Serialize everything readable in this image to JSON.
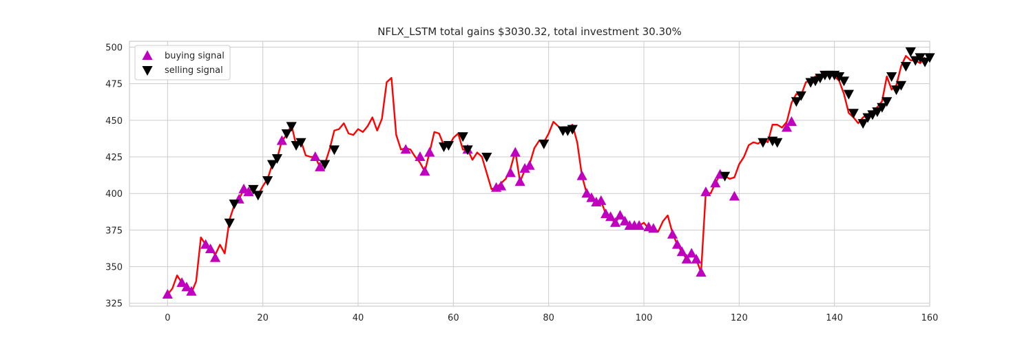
{
  "chart_data": {
    "type": "line",
    "title": "NFLX_LSTM total gains $3030.32, total investment 30.30%",
    "xlabel": "",
    "ylabel": "",
    "xlim": [
      -8,
      160
    ],
    "ylim": [
      323,
      504
    ],
    "x_ticks": [
      0,
      20,
      40,
      60,
      80,
      100,
      120,
      140,
      160
    ],
    "y_ticks": [
      325,
      350,
      375,
      400,
      425,
      450,
      475,
      500
    ],
    "grid": true,
    "legend_position": "top-left",
    "colors": {
      "line": "#ff0000",
      "buy": "#bf00bf",
      "sell": "#000000",
      "grid": "#cccccc",
      "axes_edge": "#cccccc"
    },
    "series": [
      {
        "kind": "line",
        "values": [
          331,
          335,
          344,
          339,
          336,
          332,
          340,
          370,
          365,
          363,
          358,
          365,
          359,
          382,
          392,
          396,
          403,
          402,
          403,
          399,
          405,
          410,
          420,
          424,
          436,
          440,
          447,
          433,
          436,
          426,
          425,
          425,
          418,
          420,
          430,
          443,
          444,
          448,
          441,
          440,
          444,
          442,
          446,
          452,
          443,
          451,
          476,
          479,
          440,
          430,
          431,
          430,
          425,
          421,
          415,
          428,
          442,
          441,
          433,
          432,
          438,
          441,
          430,
          430,
          423,
          428,
          425,
          414,
          403,
          404,
          407,
          410,
          417,
          429,
          408,
          416,
          420,
          431,
          436,
          435,
          441,
          449,
          446,
          443,
          444,
          447,
          435,
          412,
          400,
          396,
          394,
          395,
          386,
          383,
          380,
          385,
          381,
          378,
          378,
          378,
          380,
          376,
          376,
          374,
          381,
          385,
          373,
          365,
          360,
          355,
          360,
          355,
          346,
          401,
          400,
          407,
          413,
          412,
          410,
          411,
          420,
          425,
          433,
          435,
          434,
          437,
          435,
          447,
          447,
          445,
          449,
          462,
          468,
          467,
          476,
          477,
          480,
          481,
          481,
          481,
          480,
          477,
          468,
          455,
          452,
          448,
          452,
          454,
          456,
          459,
          463,
          480,
          471,
          474,
          487,
          494,
          491,
          491,
          489,
          493
        ]
      },
      {
        "name": "buying signal",
        "kind": "marker-up",
        "points": [
          [
            0,
            331
          ],
          [
            3,
            339
          ],
          [
            4,
            336
          ],
          [
            5,
            333
          ],
          [
            8,
            365
          ],
          [
            9,
            362
          ],
          [
            10,
            356
          ],
          [
            15,
            396
          ],
          [
            16,
            403
          ],
          [
            17,
            401
          ],
          [
            24,
            436
          ],
          [
            31,
            425
          ],
          [
            32,
            418
          ],
          [
            50,
            430
          ],
          [
            53,
            425
          ],
          [
            54,
            415
          ],
          [
            55,
            428
          ],
          [
            63,
            430
          ],
          [
            69,
            404
          ],
          [
            70,
            405
          ],
          [
            72,
            414
          ],
          [
            73,
            428
          ],
          [
            74,
            408
          ],
          [
            75,
            417
          ],
          [
            76,
            419
          ],
          [
            87,
            412
          ],
          [
            88,
            400
          ],
          [
            89,
            397
          ],
          [
            90,
            394
          ],
          [
            91,
            395
          ],
          [
            92,
            386
          ],
          [
            93,
            384
          ],
          [
            94,
            380
          ],
          [
            95,
            385
          ],
          [
            96,
            381
          ],
          [
            97,
            378
          ],
          [
            98,
            378
          ],
          [
            99,
            378
          ],
          [
            101,
            377
          ],
          [
            102,
            376
          ],
          [
            106,
            372
          ],
          [
            107,
            365
          ],
          [
            108,
            360
          ],
          [
            109,
            355
          ],
          [
            110,
            359
          ],
          [
            111,
            355
          ],
          [
            112,
            346
          ],
          [
            113,
            401
          ],
          [
            115,
            407
          ],
          [
            116,
            413
          ],
          [
            119,
            398
          ],
          [
            130,
            445
          ],
          [
            131,
            449
          ]
        ]
      },
      {
        "name": "selling signal",
        "kind": "marker-down",
        "points": [
          [
            13,
            380
          ],
          [
            14,
            393
          ],
          [
            18,
            403
          ],
          [
            19,
            399
          ],
          [
            21,
            409
          ],
          [
            22,
            420
          ],
          [
            23,
            424
          ],
          [
            25,
            441
          ],
          [
            26,
            446
          ],
          [
            27,
            433
          ],
          [
            28,
            435
          ],
          [
            33,
            420
          ],
          [
            35,
            430
          ],
          [
            58,
            432
          ],
          [
            59,
            433
          ],
          [
            62,
            439
          ],
          [
            63,
            430
          ],
          [
            67,
            425
          ],
          [
            79,
            434
          ],
          [
            83,
            443
          ],
          [
            84,
            443
          ],
          [
            85,
            444
          ],
          [
            117,
            412
          ],
          [
            125,
            435
          ],
          [
            127,
            436
          ],
          [
            128,
            435
          ],
          [
            132,
            463
          ],
          [
            133,
            467
          ],
          [
            135,
            476
          ],
          [
            136,
            477
          ],
          [
            137,
            479
          ],
          [
            138,
            481
          ],
          [
            139,
            481
          ],
          [
            140,
            481
          ],
          [
            141,
            480
          ],
          [
            142,
            477
          ],
          [
            143,
            468
          ],
          [
            144,
            455
          ],
          [
            146,
            448
          ],
          [
            147,
            452
          ],
          [
            148,
            454
          ],
          [
            149,
            456
          ],
          [
            150,
            459
          ],
          [
            151,
            463
          ],
          [
            152,
            480
          ],
          [
            153,
            471
          ],
          [
            154,
            474
          ],
          [
            155,
            487
          ],
          [
            156,
            497
          ],
          [
            157,
            491
          ],
          [
            158,
            493
          ],
          [
            159,
            490
          ],
          [
            160,
            493
          ]
        ]
      }
    ]
  }
}
